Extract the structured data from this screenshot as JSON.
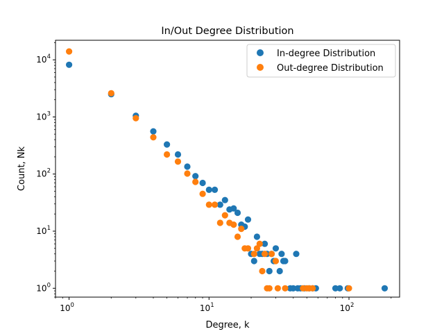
{
  "chart_data": {
    "type": "scatter",
    "title": "In/Out Degree Distribution",
    "xlabel": "Degree, k",
    "ylabel": "Count, Nk",
    "xscale": "log",
    "yscale": "log",
    "xlim": [
      0.8,
      230
    ],
    "ylim": [
      0.7,
      22000
    ],
    "grid": false,
    "legend_position": "top-right",
    "x_ticks": [
      {
        "value": 1,
        "base": "10",
        "exp": "0"
      },
      {
        "value": 10,
        "base": "10",
        "exp": "1"
      },
      {
        "value": 100,
        "base": "10",
        "exp": "2"
      }
    ],
    "y_ticks": [
      {
        "value": 1,
        "base": "10",
        "exp": "0"
      },
      {
        "value": 10,
        "base": "10",
        "exp": "1"
      },
      {
        "value": 100,
        "base": "10",
        "exp": "2"
      },
      {
        "value": 1000,
        "base": "10",
        "exp": "3"
      },
      {
        "value": 10000,
        "base": "10",
        "exp": "4"
      }
    ],
    "series": [
      {
        "name": "In-degree Distribution",
        "color": "#1f77b4",
        "points": [
          [
            1,
            8200
          ],
          [
            2,
            2500
          ],
          [
            3,
            1050
          ],
          [
            4,
            560
          ],
          [
            5,
            330
          ],
          [
            6,
            220
          ],
          [
            7,
            135
          ],
          [
            8,
            92
          ],
          [
            9,
            70
          ],
          [
            10,
            53
          ],
          [
            11,
            53
          ],
          [
            12,
            29
          ],
          [
            13,
            35
          ],
          [
            14,
            24
          ],
          [
            15,
            25
          ],
          [
            16,
            21
          ],
          [
            17,
            13
          ],
          [
            18,
            12
          ],
          [
            19,
            16
          ],
          [
            20,
            4
          ],
          [
            21,
            3
          ],
          [
            22,
            8
          ],
          [
            23,
            4
          ],
          [
            24,
            4
          ],
          [
            25,
            6
          ],
          [
            26,
            4
          ],
          [
            27,
            2
          ],
          [
            28,
            4
          ],
          [
            29,
            3
          ],
          [
            30,
            5
          ],
          [
            32,
            2
          ],
          [
            33,
            4
          ],
          [
            34,
            3
          ],
          [
            35,
            3
          ],
          [
            38,
            1
          ],
          [
            40,
            1
          ],
          [
            42,
            4
          ],
          [
            43,
            1
          ],
          [
            45,
            1
          ],
          [
            48,
            1
          ],
          [
            52,
            1
          ],
          [
            55,
            1
          ],
          [
            58,
            1
          ],
          [
            80,
            1
          ],
          [
            86,
            1
          ],
          [
            98,
            1
          ],
          [
            180,
            1
          ]
        ]
      },
      {
        "name": "Out-degree Distribution",
        "color": "#ff7f0e",
        "points": [
          [
            1,
            14000
          ],
          [
            2,
            2600
          ],
          [
            3,
            950
          ],
          [
            4,
            440
          ],
          [
            5,
            220
          ],
          [
            6,
            165
          ],
          [
            7,
            102
          ],
          [
            8,
            73
          ],
          [
            9,
            45
          ],
          [
            10,
            29
          ],
          [
            11,
            29
          ],
          [
            12,
            14
          ],
          [
            13,
            19
          ],
          [
            14,
            14
          ],
          [
            15,
            13
          ],
          [
            16,
            8
          ],
          [
            17,
            11
          ],
          [
            18,
            5
          ],
          [
            19,
            5
          ],
          [
            21,
            4
          ],
          [
            22,
            5
          ],
          [
            23,
            6
          ],
          [
            24,
            2
          ],
          [
            25,
            4
          ],
          [
            26,
            1
          ],
          [
            27,
            1
          ],
          [
            28,
            4
          ],
          [
            30,
            3
          ],
          [
            31,
            1
          ],
          [
            35,
            1
          ],
          [
            47,
            1
          ],
          [
            50,
            1
          ],
          [
            52,
            1
          ],
          [
            55,
            1
          ],
          [
            100,
            1
          ]
        ]
      }
    ]
  }
}
